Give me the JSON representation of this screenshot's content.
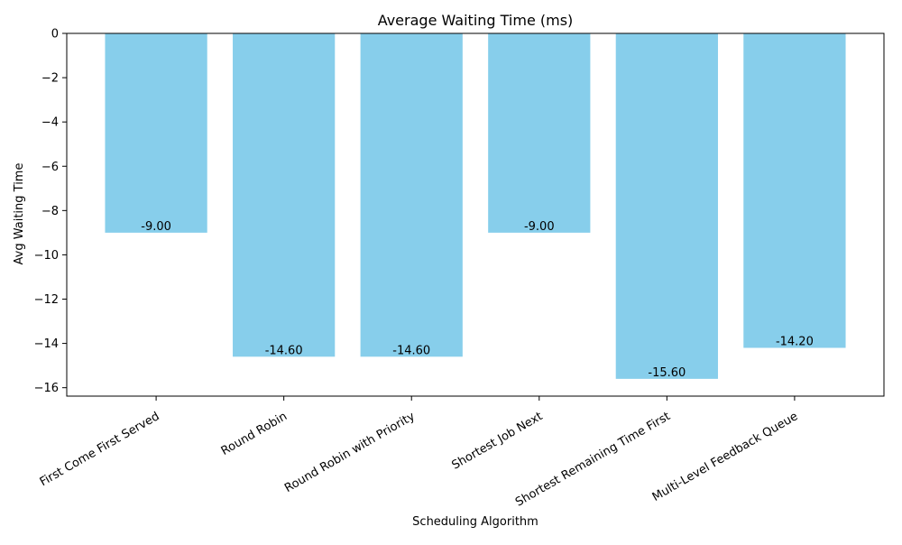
{
  "chart_data": {
    "type": "bar",
    "title": "Average Waiting Time (ms)",
    "xlabel": "Scheduling Algorithm",
    "ylabel": "Avg Waiting Time",
    "categories": [
      "First Come First Served",
      "Round Robin",
      "Round Robin with Priority",
      "Shortest Job Next",
      "Shortest Remaining Time First",
      "Multi-Level Feedback Queue"
    ],
    "values": [
      -9.0,
      -14.6,
      -14.6,
      -9.0,
      -15.6,
      -14.2
    ],
    "value_labels": [
      "-9.00",
      "-14.60",
      "-14.60",
      "-9.00",
      "-15.60",
      "-14.20"
    ],
    "ylim": [
      -16.38,
      0
    ],
    "yticks": [
      0,
      -2,
      -4,
      -6,
      -8,
      -10,
      -12,
      -14,
      -16
    ],
    "ytick_labels": [
      "0",
      "−2",
      "−4",
      "−6",
      "−8",
      "−10",
      "−12",
      "−14",
      "−16"
    ],
    "grid": false,
    "legend": "none",
    "bar_color": "#87ceeb"
  }
}
